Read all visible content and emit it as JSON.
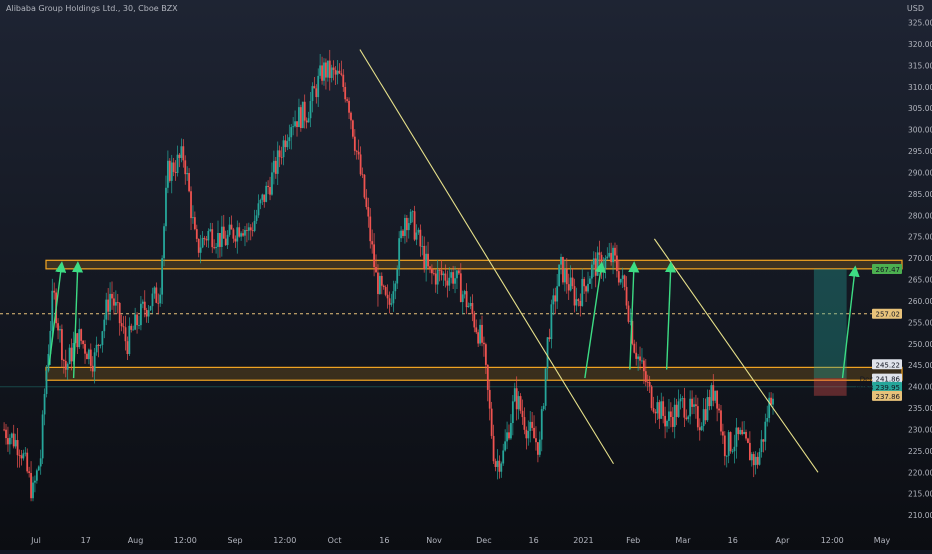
{
  "header": {
    "title": "Alibaba Group Holdings Ltd., 30, Cboe BZX",
    "currency": "USD"
  },
  "colors": {
    "background": "#131722",
    "up": "#26a69a",
    "down": "#ef5350",
    "zone": "#f5a623",
    "trendline": "#e6e08a",
    "arrow": "#3ddc84",
    "dashed": "#e8c27a",
    "axis_text": "#b2b5be"
  },
  "chart_data": {
    "type": "candlestick",
    "ylim": [
      207,
      327
    ],
    "price_ticks": [
      210.0,
      215.0,
      220.0,
      225.0,
      230.0,
      235.0,
      240.0,
      245.0,
      250.0,
      255.0,
      260.0,
      265.0,
      270.0,
      275.0,
      280.0,
      285.0,
      290.0,
      295.0,
      300.0,
      305.0,
      310.0,
      315.0,
      320.0,
      325.0
    ],
    "price_tick_labels": [
      "210.00",
      "215.00",
      "220.00",
      "225.00",
      "230.00",
      "235.00",
      "240.00",
      "245.00",
      "250.00",
      "255.00",
      "260.00",
      "265.00",
      "270.00",
      "275.00",
      "280.00",
      "285.00",
      "290.00",
      "295.00",
      "300.00",
      "305.00",
      "310.00",
      "315.00",
      "320.00",
      "325.00"
    ],
    "time_labels": [
      "Jul",
      "17",
      "Aug",
      "12:00",
      "Sep",
      "12:00",
      "Oct",
      "16",
      "Nov",
      "Dec",
      "16",
      "2021",
      "Feb",
      "Mar",
      "16",
      "Apr",
      "12:00",
      "May"
    ],
    "path": [
      [
        0,
        230
      ],
      [
        0.02,
        226
      ],
      [
        0.035,
        215
      ],
      [
        0.045,
        224
      ],
      [
        0.05,
        240
      ],
      [
        0.06,
        262
      ],
      [
        0.075,
        244
      ],
      [
        0.09,
        252
      ],
      [
        0.11,
        246
      ],
      [
        0.13,
        262
      ],
      [
        0.15,
        250
      ],
      [
        0.17,
        258
      ],
      [
        0.19,
        262
      ],
      [
        0.2,
        290
      ],
      [
        0.22,
        294
      ],
      [
        0.235,
        272
      ],
      [
        0.25,
        276
      ],
      [
        0.27,
        274
      ],
      [
        0.29,
        278
      ],
      [
        0.3,
        276
      ],
      [
        0.33,
        290
      ],
      [
        0.35,
        302
      ],
      [
        0.37,
        304
      ],
      [
        0.39,
        314
      ],
      [
        0.41,
        312
      ],
      [
        0.42,
        308
      ],
      [
        0.43,
        296
      ],
      [
        0.44,
        285
      ],
      [
        0.455,
        265
      ],
      [
        0.47,
        258
      ],
      [
        0.49,
        280
      ],
      [
        0.5,
        278
      ],
      [
        0.52,
        266
      ],
      [
        0.55,
        266
      ],
      [
        0.57,
        258
      ],
      [
        0.585,
        250
      ],
      [
        0.6,
        222
      ],
      [
        0.61,
        224
      ],
      [
        0.625,
        238
      ],
      [
        0.64,
        230
      ],
      [
        0.655,
        226
      ],
      [
        0.665,
        252
      ],
      [
        0.68,
        268
      ],
      [
        0.7,
        260
      ],
      [
        0.72,
        268
      ],
      [
        0.745,
        270
      ],
      [
        0.76,
        262
      ],
      [
        0.77,
        250
      ],
      [
        0.79,
        238
      ],
      [
        0.81,
        232
      ],
      [
        0.83,
        236
      ],
      [
        0.85,
        232
      ],
      [
        0.87,
        240
      ],
      [
        0.88,
        226
      ],
      [
        0.9,
        228
      ],
      [
        0.92,
        222
      ],
      [
        0.93,
        230
      ],
      [
        0.935,
        236
      ],
      [
        0.94,
        240
      ]
    ],
    "zones": [
      {
        "low": 267.5,
        "high": 269.5
      },
      {
        "low": 241.5,
        "high": 244.5
      }
    ],
    "dashed_level": 257.02,
    "current_price": 239.95,
    "labels": [
      {
        "text": "267.47",
        "price": 267.47,
        "color": "#4caf50"
      },
      {
        "text": "257.02",
        "price": 257.02,
        "color": "#e8c27a"
      },
      {
        "text": "245.22",
        "price": 245.22,
        "color": "#e0e3eb"
      },
      {
        "text": "Dec  241.86",
        "price": 241.86,
        "color": "#e0e3eb"
      },
      {
        "text": "24:58  239.95",
        "price": 239.95,
        "color": "#26a69a"
      },
      {
        "text": "237.86",
        "price": 237.86,
        "color": "#e8c27a"
      }
    ],
    "trendlines": [
      {
        "from": [
          0.44,
          318.7
        ],
        "to": [
          0.75,
          222
        ]
      },
      {
        "from": [
          0.8,
          274.5
        ],
        "to": [
          1.0,
          220
        ]
      }
    ],
    "arrows": [
      {
        "from": [
          0.06,
          245
        ],
        "to": [
          0.075,
          268
        ]
      },
      {
        "from": [
          0.09,
          242
        ],
        "to": [
          0.095,
          268
        ]
      },
      {
        "from": [
          0.715,
          242
        ],
        "to": [
          0.735,
          268
        ]
      },
      {
        "from": [
          0.77,
          244
        ],
        "to": [
          0.775,
          268
        ]
      },
      {
        "from": [
          0.815,
          244
        ],
        "to": [
          0.82,
          268
        ]
      },
      {
        "from": [
          1.03,
          242
        ],
        "to": [
          1.045,
          267
        ]
      }
    ],
    "position": {
      "start": 0.995,
      "end": 1.035,
      "entry": 242,
      "target": 267.47,
      "stop": 237.86
    }
  }
}
